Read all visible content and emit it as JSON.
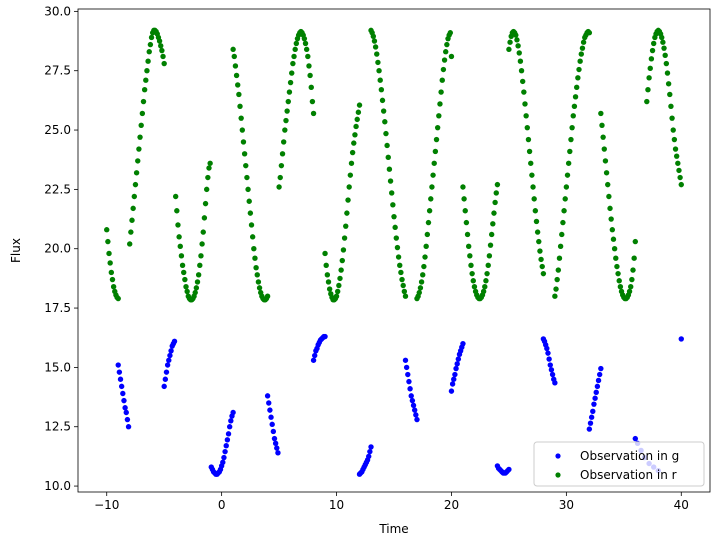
{
  "chart_data": {
    "type": "scatter",
    "title": "",
    "xlabel": "Time",
    "ylabel": "Flux",
    "xlim": [
      -12.5,
      42.5
    ],
    "ylim": [
      9.75,
      30.1
    ],
    "xticks": [
      -10,
      0,
      10,
      20,
      30,
      40
    ],
    "xtick_labels": [
      "−10",
      "0",
      "10",
      "20",
      "30",
      "40"
    ],
    "yticks": [
      10.0,
      12.5,
      15.0,
      17.5,
      20.0,
      22.5,
      25.0,
      27.5,
      30.0
    ],
    "ytick_labels": [
      "10.0",
      "12.5",
      "15.0",
      "17.5",
      "20.0",
      "22.5",
      "25.0",
      "27.5",
      "30.0"
    ],
    "grid": false,
    "legend_position": "lower-right",
    "series": [
      {
        "name": "Observation in g",
        "color": "#0000ff",
        "x": [
          -9,
          -8.9,
          -8.8,
          -8.7,
          -8.6,
          -8.5,
          -8.4,
          -8.3,
          -8.2,
          -8.1,
          -5,
          -4.9,
          -4.8,
          -4.7,
          -4.6,
          -4.5,
          -4.4,
          -4.3,
          -4.2,
          -4.1,
          -0.9,
          -0.8,
          -0.7,
          -0.6,
          -0.5,
          -0.4,
          -0.3,
          -0.2,
          -0.1,
          0,
          0.1,
          0.2,
          0.3,
          0.4,
          0.5,
          0.6,
          0.7,
          0.8,
          0.9,
          1.0,
          4,
          4.1,
          4.2,
          4.3,
          4.4,
          4.5,
          4.6,
          4.7,
          4.8,
          4.9,
          8,
          8.1,
          8.2,
          8.3,
          8.4,
          8.5,
          8.6,
          8.7,
          8.8,
          8.9,
          9.0,
          12,
          12.1,
          12.2,
          12.3,
          12.4,
          12.5,
          12.6,
          12.7,
          12.8,
          12.9,
          13.0,
          16,
          16.1,
          16.2,
          16.3,
          16.4,
          16.5,
          16.6,
          16.7,
          16.8,
          16.9,
          17.0,
          20,
          20.1,
          20.2,
          20.3,
          20.4,
          20.5,
          20.6,
          20.7,
          20.8,
          20.9,
          21.0,
          24,
          24.1,
          24.2,
          24.3,
          24.4,
          24.5,
          24.6,
          24.7,
          24.8,
          24.9,
          25.0,
          28,
          28.1,
          28.2,
          28.3,
          28.4,
          28.5,
          28.6,
          28.7,
          28.8,
          28.9,
          29.0,
          32,
          32.1,
          32.2,
          32.3,
          32.4,
          32.5,
          32.6,
          32.7,
          32.8,
          32.9,
          33.0,
          36,
          36.2,
          36.5,
          36.8,
          37.2,
          37.6,
          38,
          40
        ],
        "y": [
          15.1,
          14.8,
          14.5,
          14.2,
          13.9,
          13.6,
          13.3,
          13.1,
          12.8,
          12.5,
          14.2,
          14.5,
          14.8,
          15.1,
          15.3,
          15.5,
          15.7,
          15.9,
          16.0,
          16.1,
          10.8,
          10.7,
          10.6,
          10.55,
          10.5,
          10.5,
          10.55,
          10.6,
          10.7,
          10.85,
          11.0,
          11.2,
          11.45,
          11.7,
          11.95,
          12.2,
          12.5,
          12.75,
          12.95,
          13.1,
          13.8,
          13.5,
          13.2,
          12.9,
          12.6,
          12.3,
          12.0,
          11.8,
          11.6,
          11.4,
          15.3,
          15.5,
          15.7,
          15.8,
          15.95,
          16.05,
          16.15,
          16.2,
          16.25,
          16.3,
          16.3,
          10.5,
          10.55,
          10.6,
          10.7,
          10.8,
          10.9,
          11.0,
          11.1,
          11.25,
          11.45,
          11.65,
          15.3,
          15.0,
          14.7,
          14.4,
          14.1,
          13.8,
          13.6,
          13.4,
          13.2,
          13.0,
          12.8,
          14.0,
          14.3,
          14.5,
          14.7,
          14.95,
          15.15,
          15.35,
          15.55,
          15.7,
          15.85,
          16.0,
          10.85,
          10.75,
          10.7,
          10.65,
          10.6,
          10.55,
          10.55,
          10.55,
          10.6,
          10.65,
          10.7,
          16.2,
          16.1,
          15.95,
          15.8,
          15.6,
          15.35,
          15.1,
          14.9,
          14.7,
          14.5,
          14.35,
          12.4,
          12.65,
          12.9,
          13.15,
          13.45,
          13.7,
          13.95,
          14.2,
          14.45,
          14.7,
          14.95,
          12.0,
          11.8,
          11.5,
          11.2,
          10.95,
          10.8,
          10.65,
          16.2
        ]
      },
      {
        "name": "Observation in r",
        "color": "#008000",
        "x": [
          -10,
          -9.9,
          -9.8,
          -9.7,
          -9.6,
          -9.5,
          -9.4,
          -9.3,
          -9.2,
          -9.1,
          -9.0,
          -8,
          -7.9,
          -7.8,
          -7.7,
          -7.6,
          -7.5,
          -7.4,
          -7.3,
          -7.2,
          -7.1,
          -7.0,
          -6.9,
          -6.8,
          -6.7,
          -6.6,
          -6.5,
          -6.4,
          -6.3,
          -6.2,
          -6.1,
          -6.0,
          -5.9,
          -5.8,
          -5.7,
          -5.6,
          -5.5,
          -5.4,
          -5.3,
          -5.2,
          -5.1,
          -5.0,
          -4,
          -3.9,
          -3.8,
          -3.7,
          -3.6,
          -3.5,
          -3.4,
          -3.3,
          -3.2,
          -3.1,
          -3.0,
          -2.9,
          -2.8,
          -2.7,
          -2.6,
          -2.5,
          -2.4,
          -2.3,
          -2.2,
          -2.1,
          -2.0,
          -1.9,
          -1.8,
          -1.7,
          -1.6,
          -1.5,
          -1.4,
          -1.3,
          -1.2,
          -1.1,
          -1.0,
          1,
          1.1,
          1.2,
          1.3,
          1.4,
          1.5,
          1.6,
          1.7,
          1.8,
          1.9,
          2.0,
          2.1,
          2.2,
          2.3,
          2.4,
          2.5,
          2.6,
          2.7,
          2.8,
          2.9,
          3.0,
          3.1,
          3.2,
          3.3,
          3.4,
          3.5,
          3.6,
          3.7,
          3.8,
          3.9,
          4.0,
          5,
          5.1,
          5.2,
          5.3,
          5.4,
          5.5,
          5.6,
          5.7,
          5.8,
          5.9,
          6.0,
          6.1,
          6.2,
          6.3,
          6.4,
          6.5,
          6.6,
          6.7,
          6.8,
          6.9,
          7.0,
          7.1,
          7.2,
          7.3,
          7.4,
          7.5,
          7.6,
          7.7,
          7.8,
          7.9,
          8.0,
          9,
          9.1,
          9.2,
          9.3,
          9.4,
          9.5,
          9.6,
          9.7,
          9.8,
          9.9,
          10.0,
          10.1,
          10.2,
          10.3,
          10.4,
          10.5,
          10.6,
          10.7,
          10.8,
          10.9,
          11.0,
          11.1,
          11.2,
          11.3,
          11.4,
          11.5,
          11.6,
          11.7,
          11.8,
          11.9,
          12.0,
          13,
          13.1,
          13.2,
          13.3,
          13.4,
          13.5,
          13.6,
          13.7,
          13.8,
          13.9,
          14.0,
          14.1,
          14.2,
          14.3,
          14.4,
          14.5,
          14.6,
          14.7,
          14.8,
          14.9,
          15.0,
          15.1,
          15.2,
          15.3,
          15.4,
          15.5,
          15.6,
          15.7,
          15.8,
          15.9,
          16.0,
          17,
          17.1,
          17.2,
          17.3,
          17.4,
          17.5,
          17.6,
          17.7,
          17.8,
          17.9,
          18.0,
          18.1,
          18.2,
          18.3,
          18.4,
          18.5,
          18.6,
          18.7,
          18.8,
          18.9,
          19.0,
          19.1,
          19.2,
          19.3,
          19.4,
          19.5,
          19.6,
          19.7,
          19.8,
          19.9,
          20.0,
          21,
          21.1,
          21.2,
          21.3,
          21.4,
          21.5,
          21.6,
          21.7,
          21.8,
          21.9,
          22.0,
          22.1,
          22.2,
          22.3,
          22.4,
          22.5,
          22.6,
          22.7,
          22.8,
          22.9,
          23.0,
          23.1,
          23.2,
          23.3,
          23.4,
          23.5,
          23.6,
          23.7,
          23.8,
          23.9,
          24.0,
          25,
          25.1,
          25.2,
          25.3,
          25.4,
          25.5,
          25.6,
          25.7,
          25.8,
          25.9,
          26.0,
          26.1,
          26.2,
          26.3,
          26.4,
          26.5,
          26.6,
          26.7,
          26.8,
          26.9,
          27.0,
          27.1,
          27.2,
          27.3,
          27.4,
          27.5,
          27.6,
          27.7,
          27.8,
          27.9,
          28.0,
          29,
          29.1,
          29.2,
          29.3,
          29.4,
          29.5,
          29.6,
          29.7,
          29.8,
          29.9,
          30.0,
          30.1,
          30.2,
          30.3,
          30.4,
          30.5,
          30.6,
          30.7,
          30.8,
          30.9,
          31.0,
          31.1,
          31.2,
          31.3,
          31.4,
          31.5,
          31.6,
          31.7,
          31.8,
          31.9,
          32.0,
          33,
          33.1,
          33.2,
          33.3,
          33.4,
          33.5,
          33.6,
          33.7,
          33.8,
          33.9,
          34.0,
          34.1,
          34.2,
          34.3,
          34.4,
          34.5,
          34.6,
          34.7,
          34.8,
          34.9,
          35.0,
          35.1,
          35.2,
          35.3,
          35.4,
          35.5,
          35.6,
          35.7,
          35.8,
          35.9,
          36.0,
          37,
          37.1,
          37.2,
          37.3,
          37.4,
          37.5,
          37.6,
          37.7,
          37.8,
          37.9,
          38.0,
          38.1,
          38.2,
          38.3,
          38.4,
          38.5,
          38.6,
          38.7,
          38.8,
          38.9,
          39.0,
          39.1,
          39.2,
          39.3,
          39.4,
          39.5,
          39.6,
          39.7,
          39.8,
          39.9,
          40.0
        ],
        "y": [
          20.8,
          20.3,
          19.8,
          19.4,
          19.0,
          18.7,
          18.4,
          18.2,
          18.05,
          17.95,
          17.9,
          20.2,
          20.7,
          21.2,
          21.7,
          22.2,
          22.7,
          23.2,
          23.7,
          24.2,
          24.7,
          25.2,
          25.7,
          26.2,
          26.7,
          27.1,
          27.5,
          27.9,
          28.3,
          28.6,
          28.9,
          29.1,
          29.2,
          29.2,
          29.15,
          29.05,
          28.9,
          28.75,
          28.55,
          28.35,
          28.1,
          27.8,
          22.2,
          21.6,
          21.0,
          20.5,
          20.1,
          19.7,
          19.3,
          19.0,
          18.7,
          18.4,
          18.2,
          18.0,
          17.9,
          17.85,
          17.85,
          17.9,
          18.0,
          18.15,
          18.35,
          18.6,
          18.9,
          19.3,
          19.7,
          20.2,
          20.7,
          21.3,
          21.9,
          22.5,
          23.0,
          23.4,
          23.6,
          28.4,
          28.1,
          27.7,
          27.3,
          26.9,
          26.5,
          26.0,
          25.5,
          25.0,
          24.5,
          24.0,
          23.5,
          23.0,
          22.5,
          22.0,
          21.5,
          21.0,
          20.5,
          20.0,
          19.6,
          19.2,
          18.9,
          18.6,
          18.35,
          18.15,
          18.0,
          17.9,
          17.85,
          17.85,
          17.9,
          18.0,
          22.6,
          23.0,
          23.5,
          24.0,
          24.5,
          25.0,
          25.4,
          25.8,
          26.2,
          26.6,
          27.0,
          27.4,
          27.8,
          28.1,
          28.4,
          28.65,
          28.85,
          29.0,
          29.1,
          29.15,
          29.1,
          29.0,
          28.85,
          28.65,
          28.4,
          28.1,
          27.7,
          27.3,
          26.8,
          26.2,
          25.7,
          19.8,
          19.3,
          18.9,
          18.6,
          18.3,
          18.1,
          17.95,
          17.85,
          17.85,
          17.9,
          18.0,
          18.2,
          18.45,
          18.75,
          19.1,
          19.5,
          19.95,
          20.45,
          20.95,
          21.5,
          22.05,
          22.6,
          23.1,
          23.6,
          24.05,
          24.45,
          24.8,
          25.15,
          25.45,
          25.75,
          26.05,
          29.2,
          29.1,
          28.95,
          28.75,
          28.5,
          28.2,
          27.85,
          27.5,
          27.1,
          26.7,
          26.25,
          25.8,
          25.35,
          24.85,
          24.35,
          23.85,
          23.35,
          22.85,
          22.35,
          21.85,
          21.35,
          20.9,
          20.45,
          20.05,
          19.65,
          19.3,
          19.0,
          18.7,
          18.45,
          18.2,
          18.0,
          17.9,
          18.0,
          18.15,
          18.35,
          18.6,
          18.9,
          19.25,
          19.65,
          20.1,
          20.6,
          21.1,
          21.6,
          22.1,
          22.6,
          23.1,
          23.6,
          24.1,
          24.6,
          25.1,
          25.6,
          26.1,
          26.6,
          27.1,
          27.55,
          27.95,
          28.3,
          28.6,
          28.85,
          29.0,
          29.1,
          28.1,
          22.6,
          22.1,
          21.6,
          21.1,
          20.6,
          20.1,
          19.7,
          19.3,
          18.95,
          18.65,
          18.4,
          18.2,
          18.05,
          17.95,
          17.9,
          17.9,
          17.95,
          18.05,
          18.2,
          18.4,
          18.65,
          18.95,
          19.3,
          19.7,
          20.15,
          20.6,
          21.05,
          21.5,
          21.95,
          22.35,
          22.7,
          28.4,
          28.7,
          28.95,
          29.1,
          29.15,
          29.1,
          29.0,
          28.8,
          28.55,
          28.25,
          27.9,
          27.5,
          27.05,
          26.6,
          26.1,
          25.6,
          25.1,
          24.6,
          24.1,
          23.6,
          23.1,
          22.6,
          22.1,
          21.6,
          21.15,
          20.7,
          20.3,
          19.9,
          19.55,
          19.25,
          18.95,
          18.0,
          18.3,
          18.7,
          19.1,
          19.6,
          20.1,
          20.6,
          21.1,
          21.6,
          22.1,
          22.6,
          23.1,
          23.6,
          24.1,
          24.6,
          25.1,
          25.6,
          26.0,
          26.4,
          26.8,
          27.2,
          27.55,
          27.9,
          28.2,
          28.45,
          28.7,
          28.9,
          29.0,
          29.1,
          29.15,
          29.1,
          25.7,
          25.2,
          24.7,
          24.2,
          23.7,
          23.2,
          22.7,
          22.2,
          21.7,
          21.25,
          20.8,
          20.4,
          20.0,
          19.6,
          19.25,
          18.95,
          18.65,
          18.4,
          18.2,
          18.05,
          17.95,
          17.9,
          17.9,
          17.95,
          18.05,
          18.2,
          18.4,
          18.7,
          19.1,
          19.6,
          20.3,
          26.2,
          26.7,
          27.2,
          27.6,
          28.0,
          28.35,
          28.65,
          28.9,
          29.05,
          29.15,
          29.2,
          29.15,
          29.05,
          28.9,
          28.7,
          28.45,
          28.15,
          27.8,
          27.4,
          26.95,
          26.5,
          26.0,
          25.5,
          25.0,
          24.6,
          24.2,
          23.9,
          23.6,
          23.3,
          23.0,
          22.7
        ]
      }
    ]
  }
}
